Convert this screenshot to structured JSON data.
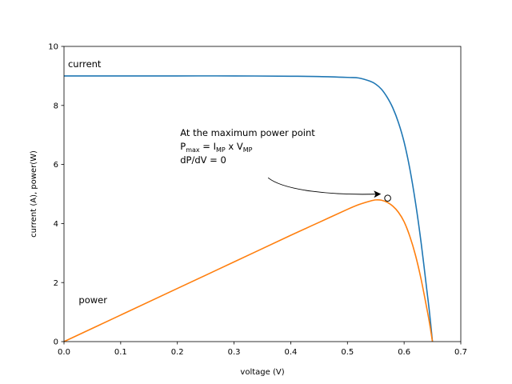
{
  "chart_data": {
    "type": "line",
    "xlabel": "voltage (V)",
    "ylabel": "current (A), power(W)",
    "xlim": [
      0.0,
      0.7
    ],
    "ylim": [
      0,
      10
    ],
    "xticks": [
      "0.0",
      "0.1",
      "0.2",
      "0.3",
      "0.4",
      "0.5",
      "0.6",
      "0.7"
    ],
    "yticks": [
      "0",
      "2",
      "4",
      "6",
      "8",
      "10"
    ],
    "grid": false,
    "series": [
      {
        "name": "current",
        "color": "#1f77b4",
        "x": [
          0.0,
          0.1,
          0.2,
          0.3,
          0.4,
          0.45,
          0.5,
          0.52,
          0.54,
          0.55,
          0.56,
          0.57,
          0.58,
          0.59,
          0.6,
          0.61,
          0.62,
          0.63,
          0.64,
          0.645,
          0.65
        ],
        "y": [
          9.0,
          9.0,
          9.0,
          9.0,
          8.99,
          8.98,
          8.95,
          8.93,
          8.82,
          8.72,
          8.55,
          8.28,
          7.92,
          7.42,
          6.76,
          5.86,
          4.72,
          3.35,
          1.76,
          0.95,
          0.0
        ]
      },
      {
        "name": "power",
        "color": "#ff7f0e",
        "x": [
          0.0,
          0.1,
          0.2,
          0.3,
          0.4,
          0.45,
          0.5,
          0.52,
          0.54,
          0.55,
          0.56,
          0.57,
          0.58,
          0.59,
          0.6,
          0.61,
          0.62,
          0.63,
          0.64,
          0.645,
          0.65
        ],
        "y": [
          0.0,
          0.9,
          1.8,
          2.7,
          3.6,
          4.04,
          4.48,
          4.64,
          4.76,
          4.8,
          4.79,
          4.72,
          4.59,
          4.38,
          4.06,
          3.57,
          2.93,
          2.11,
          1.13,
          0.61,
          0.0
        ]
      }
    ],
    "labels": [
      {
        "text": "current",
        "x": 0.007,
        "y": 9.3
      },
      {
        "text": "power",
        "x": 0.026,
        "y": 1.3
      }
    ],
    "marker": {
      "x": 0.571,
      "y": 4.86
    },
    "annotation": {
      "line1": "At the maximum power point",
      "line2": {
        "p": "P",
        "p_sub": "max",
        "eq": " = ",
        "i": "I",
        "i_sub": "MP",
        "times": " x ",
        "v": "V",
        "v_sub": "MP"
      },
      "line3": "dP/dV = 0",
      "text_anchor": {
        "x": 0.205,
        "y": 6.5
      },
      "arrow_tail": {
        "x": 0.36,
        "y": 5.55
      },
      "arrow_head": {
        "x": 0.558,
        "y": 5.0
      }
    }
  }
}
